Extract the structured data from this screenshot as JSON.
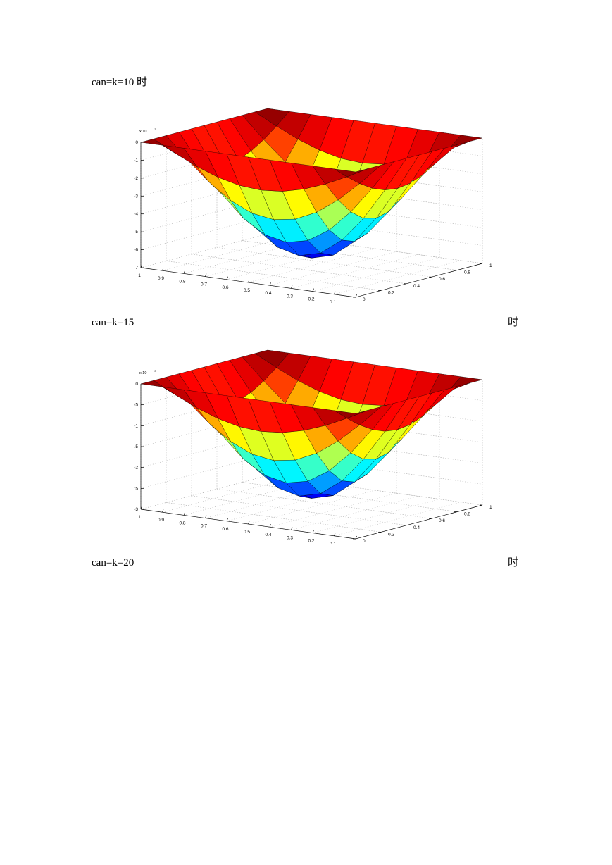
{
  "captions": {
    "fig1": "can=k=10 时",
    "fig2": "can=k=15",
    "fig2_suffix": "时",
    "fig3": "can=k=20",
    "fig3_suffix": "时"
  },
  "chart_data": [
    {
      "type": "surface",
      "z_exponent_label": "x 10",
      "z_exponent_power": "-3",
      "z_ticks": [
        "0",
        "-1",
        "-2",
        "-3",
        "-4",
        "-5",
        "-6",
        "-7"
      ],
      "z_values": [
        0,
        -1,
        -2,
        -3,
        -4,
        -5,
        -6,
        -7
      ],
      "zlim": [
        -7,
        0
      ],
      "x_ticks": [
        "1",
        "0.9",
        "0.8",
        "0.7",
        "0.6",
        "0.5",
        "0.4",
        "0.3",
        "0.2",
        "0.1",
        "0"
      ],
      "y_ticks": [
        "1",
        "0.8",
        "0.6",
        "0.4",
        "0.2",
        "0"
      ],
      "xlim": [
        0,
        1
      ],
      "ylim": [
        0,
        1
      ],
      "grid": true,
      "colormap": "jet"
    },
    {
      "type": "surface",
      "z_exponent_label": "x 10",
      "z_exponent_power": "-3",
      "z_ticks": [
        "0",
        "-0.5",
        "-1",
        "-1.5",
        "-2",
        "-2.5",
        "-3"
      ],
      "z_values": [
        0,
        -0.5,
        -1,
        -1.5,
        -2,
        -2.5,
        -3
      ],
      "zlim": [
        -3,
        0
      ],
      "x_ticks": [
        "1",
        "0.9",
        "0.8",
        "0.7",
        "0.6",
        "0.5",
        "0.4",
        "0.3",
        "0.2",
        "0.1",
        "0"
      ],
      "y_ticks": [
        "1",
        "0.8",
        "0.6",
        "0.4",
        "0.2",
        "0"
      ],
      "xlim": [
        0,
        1
      ],
      "ylim": [
        0,
        1
      ],
      "grid": true,
      "colormap": "jet"
    }
  ]
}
